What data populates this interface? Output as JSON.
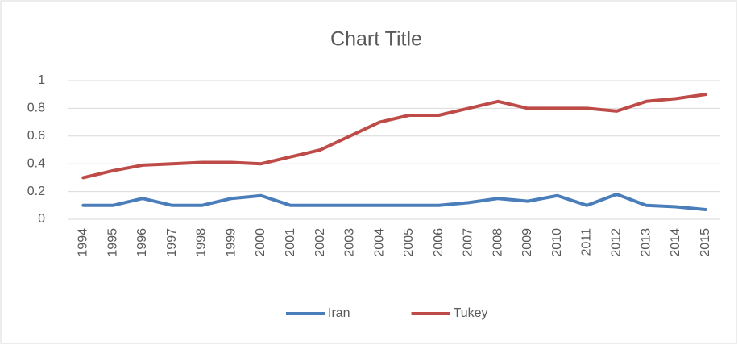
{
  "chart_data": {
    "type": "line",
    "title": "Chart Title",
    "categories": [
      "1994",
      "1995",
      "1996",
      "1997",
      "1998",
      "1999",
      "2000",
      "2001",
      "2002",
      "2003",
      "2004",
      "2005",
      "2006",
      "2007",
      "2008",
      "2009",
      "2010",
      "2011",
      "2012",
      "2013",
      "2014",
      "2015"
    ],
    "series": [
      {
        "name": "Iran",
        "color": "#4a7ebb",
        "values": [
          0.1,
          0.1,
          0.15,
          0.1,
          0.1,
          0.15,
          0.17,
          0.1,
          0.1,
          0.1,
          0.1,
          0.1,
          0.1,
          0.12,
          0.15,
          0.13,
          0.17,
          0.1,
          0.18,
          0.1,
          0.09,
          0.07
        ]
      },
      {
        "name": "Tukey",
        "color": "#be4b48",
        "values": [
          0.3,
          0.35,
          0.39,
          0.4,
          0.41,
          0.41,
          0.4,
          0.45,
          0.5,
          0.6,
          0.7,
          0.75,
          0.75,
          0.8,
          0.85,
          0.8,
          0.8,
          0.8,
          0.78,
          0.85,
          0.87,
          0.9
        ]
      }
    ],
    "ylim": [
      0,
      1
    ],
    "yticks": [
      0,
      0.2,
      0.4,
      0.6,
      0.8,
      1
    ],
    "grid": true,
    "legend": "bottom"
  }
}
